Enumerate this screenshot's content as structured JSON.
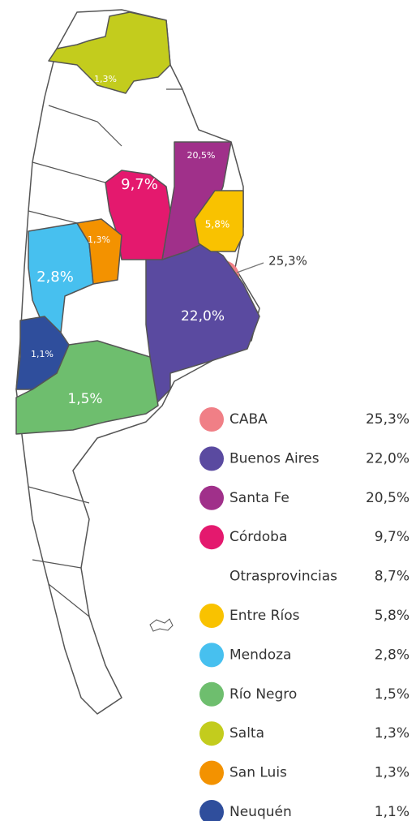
{
  "regions": [
    {
      "name": "CABA",
      "value": 25.3,
      "label": "25,3%",
      "color": "#f07f86"
    },
    {
      "name": "Buenos Aires",
      "value": 22.0,
      "label": "22,0%",
      "color": "#5a4aa0"
    },
    {
      "name": "Santa Fe",
      "value": 20.5,
      "label": "20,5%",
      "color": "#a0308a"
    },
    {
      "name": "Córdoba",
      "value": 9.7,
      "label": "9,7%",
      "color": "#e4196e"
    },
    {
      "name": "Otrasprovincias",
      "value": 8.7,
      "label": "8,7%"
    },
    {
      "name": "Entre Ríos",
      "value": 5.8,
      "label": "5,8%",
      "color": "#f9c200"
    },
    {
      "name": "Mendoza",
      "value": 2.8,
      "label": "2,8%",
      "color": "#47c0ef"
    },
    {
      "name": "Río Negro",
      "value": 1.5,
      "label": "1,5%",
      "color": "#6ebe6e"
    },
    {
      "name": "Salta",
      "value": 1.3,
      "label": "1,3%",
      "color": "#c3cc1d"
    },
    {
      "name": "San Luis",
      "value": 1.3,
      "label": "1,3%",
      "color": "#f39200"
    },
    {
      "name": "Neuquén",
      "value": 1.1,
      "label": "1,1%",
      "color": "#2f4e9c"
    }
  ]
}
